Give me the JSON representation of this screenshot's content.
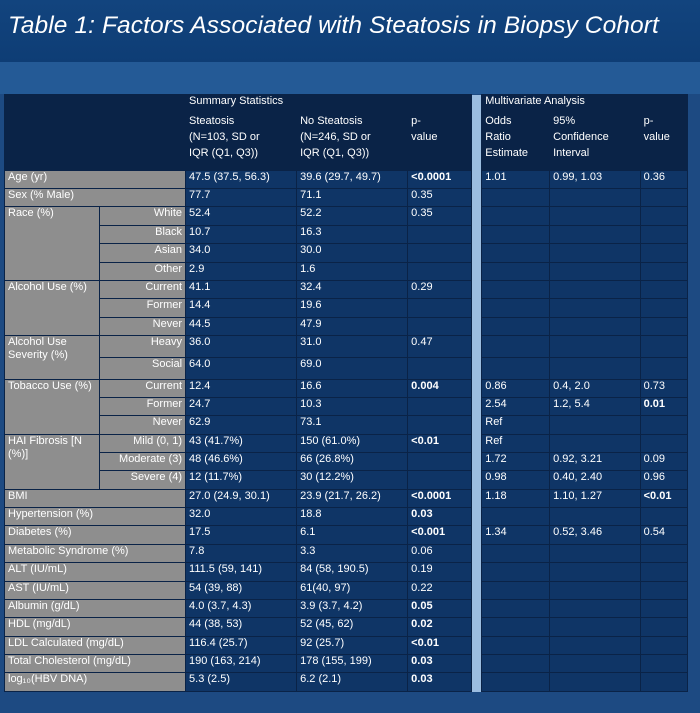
{
  "title": "Table 1: Factors Associated with Steatosis in Biopsy Cohort",
  "headers": {
    "summary": "Summary Statistics",
    "multivariate": "Multivariate Analysis",
    "steatosis": [
      "Steatosis",
      "(N=103, SD or",
      "IQR (Q1, Q3))"
    ],
    "no_steatosis": [
      "No Steatosis",
      "(N=246, SD or",
      "IQR (Q1, Q3))"
    ],
    "p_value": [
      "p-",
      "value"
    ],
    "odds_ratio": [
      "Odds",
      "Ratio",
      "Estimate"
    ],
    "ci": [
      "95%",
      "Confidence",
      "Interval"
    ],
    "p_value2": [
      "p-",
      "value"
    ]
  },
  "groups": [
    {
      "label": "Age (yr)",
      "rows": [
        {
          "sub": "",
          "s": "47.5 (37.5, 56.3)",
          "ns": "39.6 (29.7, 49.7)",
          "p": "<0.0001",
          "p_bold": true,
          "or": "1.01",
          "ci": "0.99, 1.03",
          "p2": "0.36",
          "p2_bold": false
        }
      ]
    },
    {
      "label": "Sex (% Male)",
      "rows": [
        {
          "sub": "",
          "s": "77.7",
          "ns": "71.1",
          "p": "0.35",
          "p_bold": false,
          "or": "",
          "ci": "",
          "p2": "",
          "p2_bold": false
        }
      ]
    },
    {
      "label": "Race (%)",
      "rows": [
        {
          "sub": "White",
          "s": "52.4",
          "ns": "52.2",
          "p": "0.35",
          "p_bold": false,
          "or": "",
          "ci": "",
          "p2": "",
          "p2_bold": false
        },
        {
          "sub": "Black",
          "s": "10.7",
          "ns": "16.3",
          "p": "",
          "p_bold": false,
          "or": "",
          "ci": "",
          "p2": "",
          "p2_bold": false
        },
        {
          "sub": "Asian",
          "s": "34.0",
          "ns": "30.0",
          "p": "",
          "p_bold": false,
          "or": "",
          "ci": "",
          "p2": "",
          "p2_bold": false
        },
        {
          "sub": "Other",
          "s": "2.9",
          "ns": "1.6",
          "p": "",
          "p_bold": false,
          "or": "",
          "ci": "",
          "p2": "",
          "p2_bold": false
        }
      ]
    },
    {
      "label": "Alcohol Use (%)",
      "rows": [
        {
          "sub": "Current",
          "s": "41.1",
          "ns": "32.4",
          "p": "0.29",
          "p_bold": false,
          "or": "",
          "ci": "",
          "p2": "",
          "p2_bold": false
        },
        {
          "sub": "Former",
          "s": "14.4",
          "ns": "19.6",
          "p": "",
          "p_bold": false,
          "or": "",
          "ci": "",
          "p2": "",
          "p2_bold": false
        },
        {
          "sub": "Never",
          "s": "44.5",
          "ns": "47.9",
          "p": "",
          "p_bold": false,
          "or": "",
          "ci": "",
          "p2": "",
          "p2_bold": false
        }
      ]
    },
    {
      "label": "Alcohol Use Severity (%)",
      "rows": [
        {
          "sub": "Heavy",
          "s": "36.0",
          "ns": "31.0",
          "p": "0.47",
          "p_bold": false,
          "or": "",
          "ci": "",
          "p2": "",
          "p2_bold": false
        },
        {
          "sub": "Social",
          "s": "64.0",
          "ns": "69.0",
          "p": "",
          "p_bold": false,
          "or": "",
          "ci": "",
          "p2": "",
          "p2_bold": false
        }
      ]
    },
    {
      "label": "Tobacco Use (%)",
      "rows": [
        {
          "sub": "Current",
          "s": "12.4",
          "ns": "16.6",
          "p": "0.004",
          "p_bold": true,
          "or": "0.86",
          "ci": "0.4, 2.0",
          "p2": "0.73",
          "p2_bold": false
        },
        {
          "sub": "Former",
          "s": "24.7",
          "ns": "10.3",
          "p": "",
          "p_bold": false,
          "or": "2.54",
          "ci": "1.2, 5.4",
          "p2": "0.01",
          "p2_bold": true
        },
        {
          "sub": "Never",
          "s": "62.9",
          "ns": "73.1",
          "p": "",
          "p_bold": false,
          "or": "Ref",
          "ci": "",
          "p2": "",
          "p2_bold": false
        }
      ]
    },
    {
      "label": "HAI Fibrosis [N (%)]",
      "rows": [
        {
          "sub": "Mild (0, 1)",
          "s": "43 (41.7%)",
          "ns": "150 (61.0%)",
          "p": "<0.01",
          "p_bold": true,
          "or": "Ref",
          "ci": "",
          "p2": "",
          "p2_bold": false
        },
        {
          "sub": "Moderate (3)",
          "s": "48 (46.6%)",
          "ns": "66 (26.8%)",
          "p": "",
          "p_bold": false,
          "or": "1.72",
          "ci": "0.92, 3.21",
          "p2": "0.09",
          "p2_bold": false
        },
        {
          "sub": "Severe (4)",
          "s": "12 (11.7%)",
          "ns": "30 (12.2%)",
          "p": "",
          "p_bold": false,
          "or": "0.98",
          "ci": "0.40, 2.40",
          "p2": "0.96",
          "p2_bold": false
        }
      ]
    },
    {
      "label": "BMI",
      "rows": [
        {
          "sub": "",
          "s": "27.0 (24.9, 30.1)",
          "ns": "23.9 (21.7, 26.2)",
          "p": "<0.0001",
          "p_bold": true,
          "or": "1.18",
          "ci": "1.10, 1.27",
          "p2": "<0.01",
          "p2_bold": true
        }
      ]
    },
    {
      "label": "Hypertension (%)",
      "rows": [
        {
          "sub": "",
          "s": "32.0",
          "ns": "18.8",
          "p": "0.03",
          "p_bold": true,
          "or": "",
          "ci": "",
          "p2": "",
          "p2_bold": false
        }
      ]
    },
    {
      "label": "Diabetes (%)",
      "rows": [
        {
          "sub": "",
          "s": "17.5",
          "ns": "6.1",
          "p": "<0.001",
          "p_bold": true,
          "or": "1.34",
          "ci": "0.52, 3.46",
          "p2": "0.54",
          "p2_bold": false
        }
      ]
    },
    {
      "label": "Metabolic Syndrome (%)",
      "rows": [
        {
          "sub": "",
          "s": "7.8",
          "ns": "3.3",
          "p": "0.06",
          "p_bold": false,
          "or": "",
          "ci": "",
          "p2": "",
          "p2_bold": false
        }
      ]
    },
    {
      "label": "ALT (IU/mL)",
      "rows": [
        {
          "sub": "",
          "s": "111.5 (59, 141)",
          "ns": "84 (58, 190.5)",
          "p": "0.19",
          "p_bold": false,
          "or": "",
          "ci": "",
          "p2": "",
          "p2_bold": false
        }
      ]
    },
    {
      "label": "AST (IU/mL)",
      "rows": [
        {
          "sub": "",
          "s": "54 (39, 88)",
          "ns": "61(40, 97)",
          "p": "0.22",
          "p_bold": false,
          "or": "",
          "ci": "",
          "p2": "",
          "p2_bold": false
        }
      ]
    },
    {
      "label": "Albumin (g/dL)",
      "rows": [
        {
          "sub": "",
          "s": "4.0 (3.7, 4.3)",
          "ns": "3.9 (3.7, 4.2)",
          "p": "0.05",
          "p_bold": true,
          "or": "",
          "ci": "",
          "p2": "",
          "p2_bold": false
        }
      ]
    },
    {
      "label": "HDL (mg/dL)",
      "rows": [
        {
          "sub": "",
          "s": "44 (38, 53)",
          "ns": "52 (45, 62)",
          "p": "0.02",
          "p_bold": true,
          "or": "",
          "ci": "",
          "p2": "",
          "p2_bold": false
        }
      ]
    },
    {
      "label": "LDL Calculated (mg/dL)",
      "rows": [
        {
          "sub": "",
          "s": "116.4 (25.7)",
          "ns": "92 (25.7)",
          "p": "<0.01",
          "p_bold": true,
          "or": "",
          "ci": "",
          "p2": "",
          "p2_bold": false
        }
      ]
    },
    {
      "label": "Total Cholesterol (mg/dL)",
      "rows": [
        {
          "sub": "",
          "s": "190 (163, 214)",
          "ns": "178 (155, 199)",
          "p": "0.03",
          "p_bold": true,
          "or": "",
          "ci": "",
          "p2": "",
          "p2_bold": false
        }
      ]
    },
    {
      "label": "log₁₀(HBV DNA)",
      "rows": [
        {
          "sub": "",
          "s": "5.3 (2.5)",
          "ns": "6.2 (2.1)",
          "p": "0.03",
          "p_bold": true,
          "or": "",
          "ci": "",
          "p2": "",
          "p2_bold": false
        }
      ]
    }
  ]
}
